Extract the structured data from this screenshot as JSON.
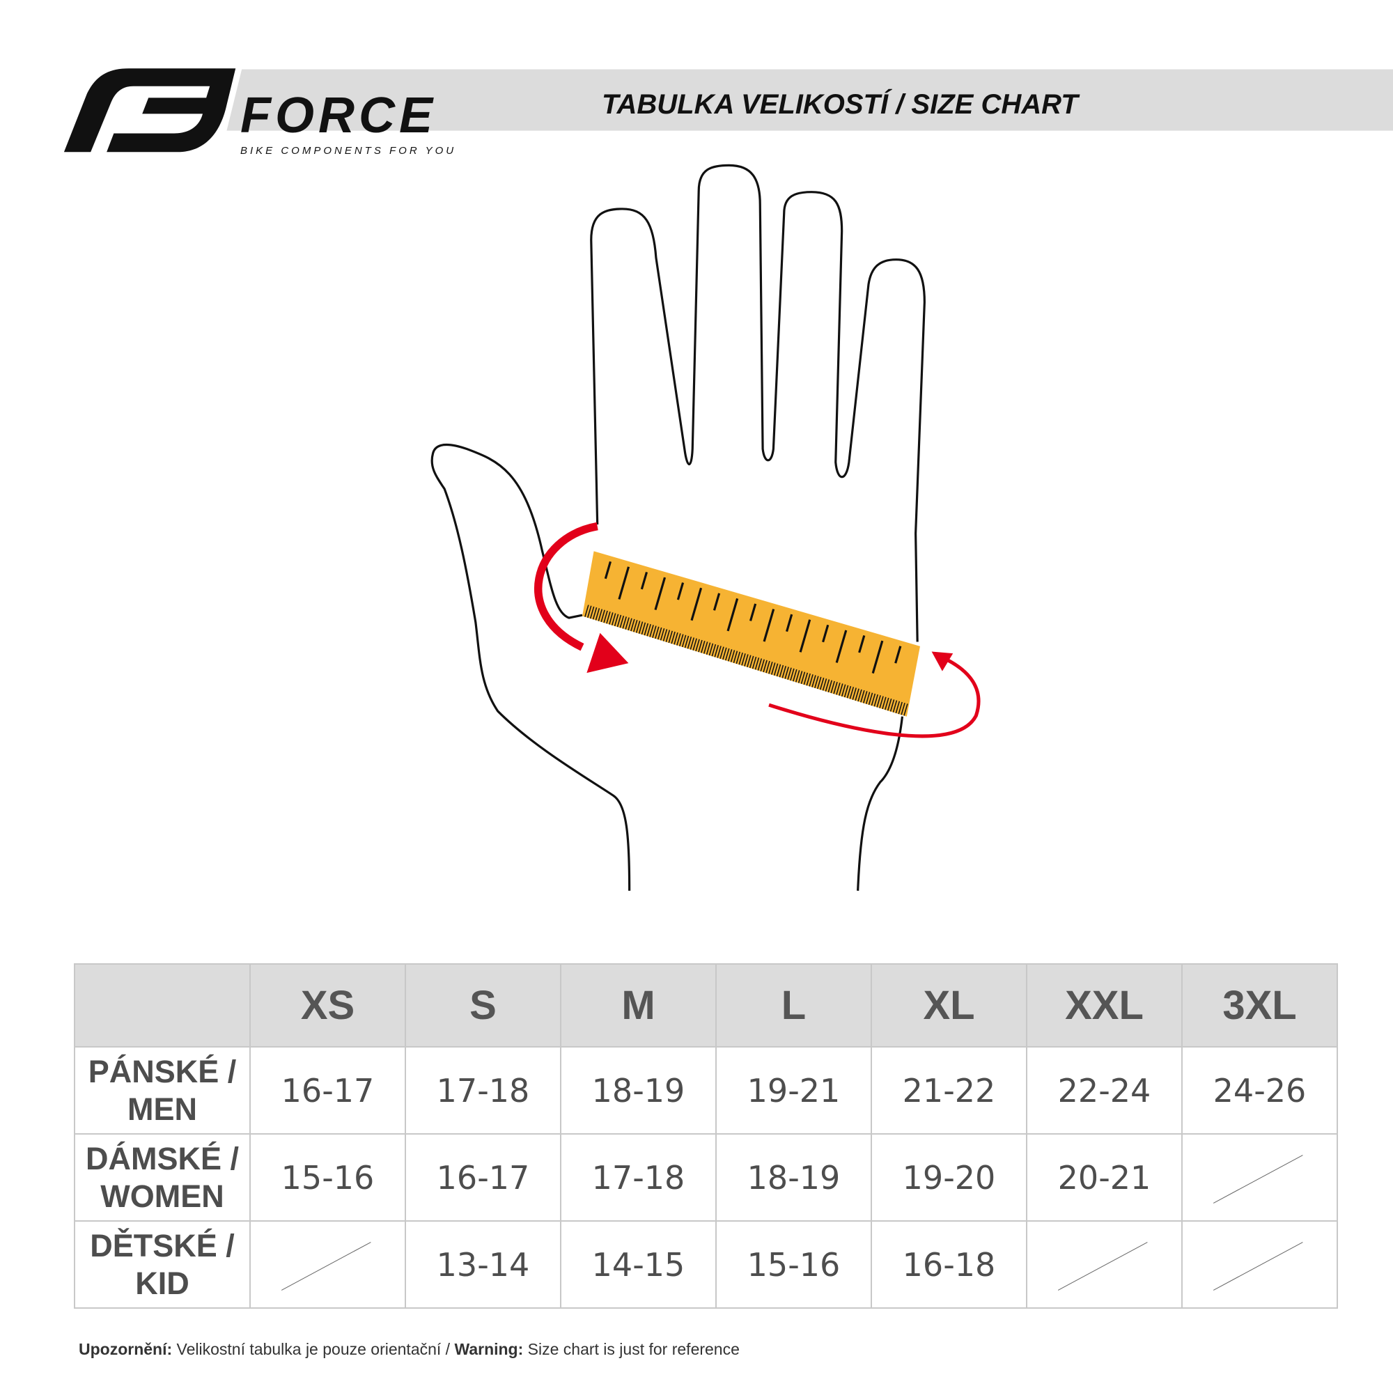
{
  "brand": {
    "name": "FORCE",
    "tagline": "BIKE COMPONENTS FOR YOU"
  },
  "header": {
    "title": "TABULKA VELIKOSTÍ / SIZE CHART"
  },
  "colors": {
    "ruler": "#f6b333",
    "arrow": "#e2001a",
    "header_bg": "#dcdcdc"
  },
  "table": {
    "columns": [
      "",
      "XS",
      "S",
      "M",
      "L",
      "XL",
      "XXL",
      "3XL"
    ],
    "rows": [
      {
        "label_line1": "PÁNSKÉ /",
        "label_line2": "MEN",
        "values": [
          "16-17",
          "17-18",
          "18-19",
          "19-21",
          "21-22",
          "22-24",
          "24-26"
        ]
      },
      {
        "label_line1": "DÁMSKÉ /",
        "label_line2": "WOMEN",
        "values": [
          "15-16",
          "16-17",
          "17-18",
          "18-19",
          "19-20",
          "20-21",
          null
        ]
      },
      {
        "label_line1": "DĚTSKÉ /",
        "label_line2": "KID",
        "values": [
          null,
          "13-14",
          "14-15",
          "15-16",
          "16-18",
          null,
          null
        ]
      }
    ]
  },
  "footer": {
    "warning_cz_label": "Upozornění:",
    "warning_cz": " Velikostní tabulka je pouze orientační / ",
    "warning_en_label": "Warning:",
    "warning_en": " Size chart is just for reference"
  }
}
